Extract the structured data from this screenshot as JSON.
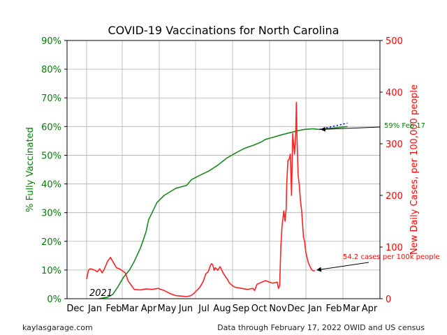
{
  "chart_data": {
    "type": "line",
    "title": "COVID-19 Vaccinations for North Carolina",
    "ylabel_left": "% Fully Vaccinated",
    "ylabel_right": "New Daily Cases, per 100,000 people",
    "ylim_left": [
      0,
      90
    ],
    "ylim_right": [
      0,
      500
    ],
    "yticks_left": [
      "0%",
      "10%",
      "20%",
      "30%",
      "40%",
      "50%",
      "60%",
      "70%",
      "80%",
      "90%"
    ],
    "yticks_right": [
      "0",
      "100",
      "200",
      "300",
      "400",
      "500"
    ],
    "x_months": [
      "Dec",
      "Jan",
      "Feb",
      "Mar",
      "Apr",
      "May",
      "Jun",
      "Jul",
      "Aug",
      "Sep",
      "Oct",
      "Nov",
      "Dec",
      "Jan",
      "Feb",
      "Mar",
      "Apr"
    ],
    "year_marker": "2021",
    "grid": true,
    "colors": {
      "vaccinated": "#1a8a1a",
      "cases": "#ff2020",
      "projection": "#0000cc",
      "left_axis": "#008000",
      "right_axis": "#ff0000"
    },
    "series": [
      {
        "name": "% Fully Vaccinated",
        "axis": "left",
        "x_days": [
          20,
          35,
          44,
          52,
          62,
          72,
          80,
          90,
          96,
          100,
          104,
          110,
          118,
          130,
          150,
          168,
          176,
          190,
          205,
          220,
          235,
          252,
          266,
          280,
          292,
          300,
          312,
          325,
          338,
          350,
          358,
          366,
          380,
          391,
          438
        ],
        "values": [
          0,
          0.5,
          1.5,
          4,
          7.5,
          10,
          13,
          17.5,
          21,
          23.5,
          27.5,
          30,
          33.5,
          36,
          38.5,
          39.5,
          41.5,
          43,
          44.5,
          46.5,
          49,
          51,
          52.5,
          53.5,
          54.5,
          55.5,
          56.2,
          57,
          57.7,
          58.3,
          58.7,
          59,
          59.2,
          59,
          60
        ]
      },
      {
        "name": "New Daily Cases, per 100,000 people",
        "axis": "right",
        "x_days": [
          0,
          3,
          6,
          10,
          14,
          18,
          22,
          26,
          30,
          35,
          40,
          45,
          50,
          55,
          60,
          65,
          70,
          80,
          90,
          100,
          110,
          120,
          130,
          140,
          150,
          160,
          168,
          175,
          180,
          190,
          196,
          200,
          202,
          204,
          206,
          208,
          210,
          212,
          214,
          216,
          220,
          224,
          230,
          236,
          240,
          246,
          250,
          260,
          270,
          275,
          279,
          282,
          286,
          290,
          300,
          312,
          320,
          322,
          324,
          326,
          328,
          330,
          331,
          333,
          335,
          336,
          338,
          340,
          342,
          344,
          346,
          347,
          349,
          351,
          352,
          353,
          355,
          357,
          359,
          361,
          364,
          366,
          368,
          370,
          372,
          374,
          376,
          378,
          380,
          383
        ],
        "values": [
          38,
          55,
          58,
          57,
          55,
          52,
          58,
          50,
          58,
          72,
          80,
          70,
          60,
          58,
          54,
          50,
          34,
          18,
          17,
          19,
          18,
          20,
          16,
          10,
          6,
          5,
          4,
          6,
          10,
          22,
          34,
          48,
          50,
          52,
          58,
          65,
          68,
          65,
          55,
          60,
          55,
          62,
          48,
          38,
          30,
          24,
          22,
          20,
          18,
          19,
          20,
          16,
          28,
          30,
          35,
          30,
          32,
          20,
          25,
          100,
          140,
          160,
          170,
          150,
          175,
          225,
          268,
          270,
          280,
          200,
          320,
          305,
          280,
          320,
          380,
          320,
          240,
          220,
          190,
          170,
          120,
          110,
          90,
          80,
          70,
          65,
          60,
          56,
          54,
          54
        ]
      },
      {
        "name": "Projection",
        "axis": "left",
        "style": "dotted",
        "x_days": [
          391,
          438
        ],
        "values": [
          59,
          61.2
        ]
      }
    ],
    "annotations": [
      {
        "text": "59% Feb 17",
        "series": "% Fully Vaccinated",
        "target_day": 391,
        "target_value": 59
      },
      {
        "text": "54.2 cases per 100k people",
        "series": "New Daily Cases, per 100,000 people",
        "target_day": 383,
        "target_value": 54.2
      }
    ]
  },
  "footer": {
    "left": "kaylasgarage.com",
    "right": "Data through February 17, 2022 OWID and US census"
  }
}
